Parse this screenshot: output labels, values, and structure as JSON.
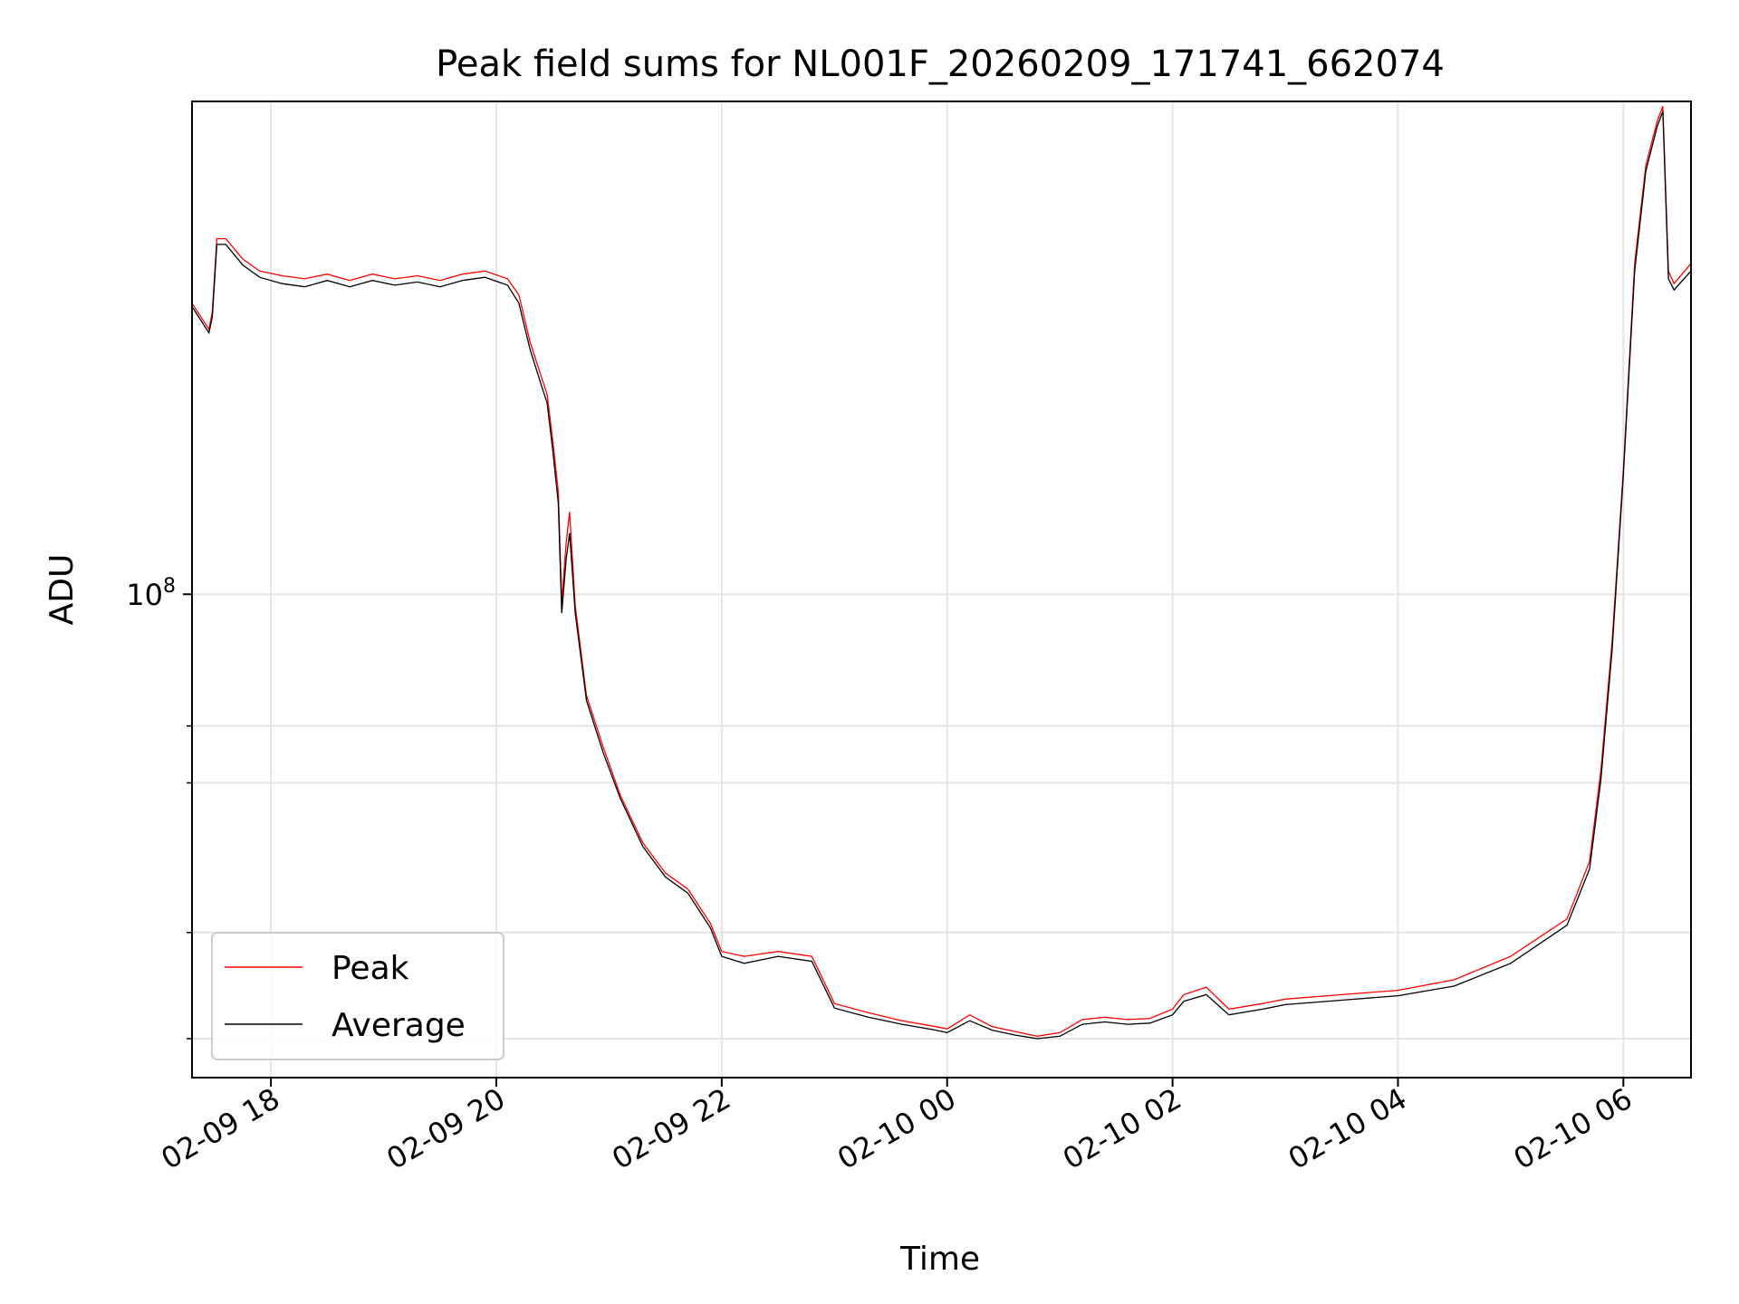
{
  "chart_data": {
    "type": "line",
    "title": "Peak field sums for NL001F_20260209_171741_662074",
    "xlabel": "Time",
    "ylabel": "ADU",
    "yscale": "log",
    "ylim": [
      27000000,
      380000000
    ],
    "xlim_hours": [
      17.3,
      30.6
    ],
    "grid": true,
    "legend_position": "lower-left",
    "x_ticks": [
      {
        "hour": 18,
        "label": "02-09 18"
      },
      {
        "hour": 20,
        "label": "02-09 20"
      },
      {
        "hour": 22,
        "label": "02-09 22"
      },
      {
        "hour": 24,
        "label": "02-10 00"
      },
      {
        "hour": 26,
        "label": "02-10 02"
      },
      {
        "hour": 28,
        "label": "02-10 04"
      },
      {
        "hour": 30,
        "label": "02-10 06"
      }
    ],
    "y_major_ticks": [
      {
        "value": 100000000,
        "base": "10",
        "exp": "8"
      }
    ],
    "y_minor_ticks": [
      30000000,
      40000000,
      60000000,
      70000000
    ],
    "series": [
      {
        "name": "Peak",
        "color": "#ff0000",
        "x_hours": [
          17.3,
          17.45,
          17.48,
          17.52,
          17.6,
          17.75,
          17.9,
          18.1,
          18.3,
          18.5,
          18.7,
          18.9,
          19.1,
          19.3,
          19.5,
          19.7,
          19.9,
          20.1,
          20.2,
          20.3,
          20.4,
          20.45,
          20.5,
          20.55,
          20.58,
          20.62,
          20.65,
          20.7,
          20.8,
          20.95,
          21.1,
          21.3,
          21.5,
          21.7,
          21.9,
          22.0,
          22.2,
          22.5,
          22.8,
          23.0,
          23.3,
          23.6,
          23.9,
          24.0,
          24.2,
          24.4,
          24.6,
          24.8,
          25.0,
          25.2,
          25.4,
          25.6,
          25.8,
          26.0,
          26.1,
          26.3,
          26.5,
          26.8,
          27.0,
          27.5,
          28.0,
          28.5,
          29.0,
          29.5,
          29.7,
          29.8,
          29.9,
          30.0,
          30.1,
          30.2,
          30.3,
          30.35,
          30.4,
          30.45,
          30.6
        ],
        "values": [
          220000000,
          205000000,
          215000000,
          262000000,
          262000000,
          248000000,
          240000000,
          237000000,
          235000000,
          238000000,
          234000000,
          238000000,
          235000000,
          237000000,
          234000000,
          238000000,
          240000000,
          235000000,
          225000000,
          198000000,
          180000000,
          172000000,
          152000000,
          132000000,
          98000000,
          115000000,
          125000000,
          97000000,
          76000000,
          66000000,
          58000000,
          51000000,
          47000000,
          45000000,
          41000000,
          38000000,
          37500000,
          38000000,
          37500000,
          33000000,
          32200000,
          31500000,
          31000000,
          30800000,
          32000000,
          31000000,
          30600000,
          30200000,
          30500000,
          31600000,
          31800000,
          31600000,
          31700000,
          32500000,
          33800000,
          34500000,
          32500000,
          33000000,
          33400000,
          33800000,
          34200000,
          35200000,
          37500000,
          41500000,
          48500000,
          62000000,
          88000000,
          140000000,
          245000000,
          320000000,
          360000000,
          375000000,
          240000000,
          232000000,
          245000000
        ]
      },
      {
        "name": "Average",
        "color": "#000000",
        "x_hours": [
          17.3,
          17.45,
          17.48,
          17.52,
          17.6,
          17.75,
          17.9,
          18.1,
          18.3,
          18.5,
          18.7,
          18.9,
          19.1,
          19.3,
          19.5,
          19.7,
          19.9,
          20.1,
          20.2,
          20.3,
          20.4,
          20.45,
          20.5,
          20.55,
          20.58,
          20.62,
          20.65,
          20.7,
          20.8,
          20.95,
          21.1,
          21.3,
          21.5,
          21.7,
          21.9,
          22.0,
          22.2,
          22.5,
          22.8,
          23.0,
          23.3,
          23.6,
          23.9,
          24.0,
          24.2,
          24.4,
          24.6,
          24.8,
          25.0,
          25.2,
          25.4,
          25.6,
          25.8,
          26.0,
          26.1,
          26.3,
          26.5,
          26.8,
          27.0,
          27.5,
          28.0,
          28.5,
          29.0,
          29.5,
          29.7,
          29.8,
          29.9,
          30.0,
          30.1,
          30.2,
          30.3,
          30.35,
          30.4,
          30.45,
          30.6
        ],
        "values": [
          218000000,
          203000000,
          212000000,
          258000000,
          258000000,
          244000000,
          236000000,
          232000000,
          230000000,
          234000000,
          230000000,
          234000000,
          231000000,
          233000000,
          230000000,
          234000000,
          236000000,
          231000000,
          220000000,
          194000000,
          176000000,
          168000000,
          148000000,
          128000000,
          95000000,
          110000000,
          118000000,
          95000000,
          75000000,
          65000000,
          57500000,
          50500000,
          46500000,
          44500000,
          40500000,
          37500000,
          36800000,
          37500000,
          37000000,
          32600000,
          31800000,
          31200000,
          30700000,
          30500000,
          31500000,
          30700000,
          30300000,
          30000000,
          30200000,
          31200000,
          31400000,
          31200000,
          31300000,
          32000000,
          33200000,
          33800000,
          32000000,
          32500000,
          32900000,
          33300000,
          33700000,
          34600000,
          36800000,
          40800000,
          47500000,
          60500000,
          86000000,
          138000000,
          240000000,
          315000000,
          355000000,
          370000000,
          235000000,
          228000000,
          240000000
        ]
      }
    ]
  }
}
